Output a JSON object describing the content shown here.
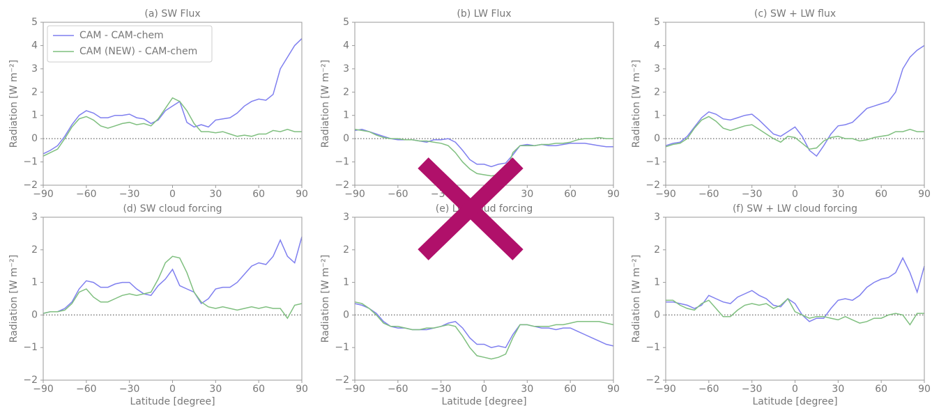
{
  "chart_data": [
    {
      "type": "line",
      "title": "(a) SW Flux",
      "ylabel": "Radiation [W m⁻²]",
      "legend": "upper left",
      "hline": 0,
      "x": [
        -90,
        -85,
        -80,
        -75,
        -70,
        -65,
        -60,
        -55,
        -50,
        -45,
        -40,
        -35,
        -30,
        -25,
        -20,
        -15,
        -10,
        -5,
        0,
        5,
        10,
        15,
        20,
        25,
        30,
        35,
        40,
        45,
        50,
        55,
        60,
        65,
        70,
        75,
        80,
        85,
        90
      ],
      "xlim": [
        -90,
        90
      ],
      "xticks": [
        {
          "value": -90,
          "label": "−90"
        },
        {
          "value": -60,
          "label": "−60"
        },
        {
          "value": -30,
          "label": "−30"
        },
        0,
        30,
        60,
        90
      ],
      "ylim": [
        -2,
        5
      ],
      "yticks": [
        {
          "value": -2,
          "label": "−2"
        },
        {
          "value": -1,
          "label": "−1"
        },
        0,
        1,
        2,
        3,
        4,
        5
      ],
      "series": [
        {
          "name": "CAM - CAM-chem",
          "color": "#7f7fef",
          "values": [
            -0.65,
            -0.5,
            -0.3,
            0.1,
            0.6,
            1.0,
            1.2,
            1.1,
            0.9,
            0.9,
            1.0,
            1.0,
            1.05,
            0.9,
            0.85,
            0.65,
            0.8,
            1.2,
            1.4,
            1.6,
            0.7,
            0.5,
            0.6,
            0.5,
            0.8,
            0.85,
            0.9,
            1.1,
            1.4,
            1.6,
            1.7,
            1.65,
            1.9,
            3.0,
            3.5,
            4.0,
            4.3
          ]
        },
        {
          "name": "CAM (NEW) - CAM-chem",
          "color": "#7fbf7f",
          "values": [
            -0.75,
            -0.6,
            -0.45,
            0,
            0.5,
            0.85,
            0.95,
            0.8,
            0.55,
            0.45,
            0.55,
            0.65,
            0.7,
            0.6,
            0.65,
            0.55,
            0.85,
            1.3,
            1.75,
            1.6,
            1.2,
            0.65,
            0.3,
            0.3,
            0.25,
            0.3,
            0.2,
            0.1,
            0.15,
            0.1,
            0.2,
            0.2,
            0.35,
            0.3,
            0.4,
            0.3,
            0.3
          ]
        }
      ]
    },
    {
      "type": "line",
      "title": "(b) LW Flux",
      "ylabel": "Radiation [W m⁻²]",
      "hline": 0,
      "x": [
        -90,
        -85,
        -80,
        -75,
        -70,
        -65,
        -60,
        -55,
        -50,
        -45,
        -40,
        -35,
        -30,
        -25,
        -20,
        -15,
        -10,
        -5,
        0,
        5,
        10,
        15,
        20,
        25,
        30,
        35,
        40,
        45,
        50,
        55,
        60,
        65,
        70,
        75,
        80,
        85,
        90
      ],
      "xlim": [
        -90,
        90
      ],
      "xticks": [
        {
          "value": -90,
          "label": "−90"
        },
        {
          "value": -60,
          "label": "−60"
        },
        {
          "value": -30,
          "label": "−30"
        },
        0,
        30,
        60,
        90
      ],
      "ylim": [
        -2,
        5
      ],
      "yticks": [
        {
          "value": -2,
          "label": "−2"
        },
        {
          "value": -1,
          "label": "−1"
        },
        0,
        1,
        2,
        3,
        4,
        5
      ],
      "series": [
        {
          "color": "#7f7fef",
          "values": [
            0.35,
            0.4,
            0.3,
            0.2,
            0.1,
            0,
            -0.05,
            -0.05,
            -0.05,
            -0.1,
            -0.15,
            -0.05,
            -0.05,
            0,
            -0.15,
            -0.5,
            -0.9,
            -1.1,
            -1.1,
            -1.2,
            -1.1,
            -1.05,
            -0.7,
            -0.3,
            -0.25,
            -0.3,
            -0.25,
            -0.3,
            -0.3,
            -0.25,
            -0.2,
            -0.2,
            -0.2,
            -0.25,
            -0.3,
            -0.35,
            -0.35
          ]
        },
        {
          "color": "#7fbf7f",
          "values": [
            0.4,
            0.35,
            0.3,
            0.15,
            0.05,
            0,
            0,
            -0.05,
            -0.05,
            -0.1,
            -0.1,
            -0.15,
            -0.2,
            -0.3,
            -0.6,
            -1.0,
            -1.3,
            -1.5,
            -1.55,
            -1.6,
            -1.55,
            -1.5,
            -0.6,
            -0.3,
            -0.3,
            -0.3,
            -0.25,
            -0.25,
            -0.2,
            -0.2,
            -0.15,
            -0.05,
            0,
            0,
            0.05,
            0,
            0
          ]
        }
      ]
    },
    {
      "type": "line",
      "title": "(c) SW + LW flux",
      "ylabel": "Radiation [W m⁻²]",
      "hline": 0,
      "x": [
        -90,
        -85,
        -80,
        -75,
        -70,
        -65,
        -60,
        -55,
        -50,
        -45,
        -40,
        -35,
        -30,
        -25,
        -20,
        -15,
        -10,
        -5,
        0,
        5,
        10,
        15,
        20,
        25,
        30,
        35,
        40,
        45,
        50,
        55,
        60,
        65,
        70,
        75,
        80,
        85,
        90
      ],
      "xlim": [
        -90,
        90
      ],
      "xticks": [
        {
          "value": -90,
          "label": "−90"
        },
        {
          "value": -60,
          "label": "−60"
        },
        {
          "value": -30,
          "label": "−30"
        },
        0,
        30,
        60,
        90
      ],
      "ylim": [
        -2,
        5
      ],
      "yticks": [
        {
          "value": -2,
          "label": "−2"
        },
        {
          "value": -1,
          "label": "−1"
        },
        0,
        1,
        2,
        3,
        4,
        5
      ],
      "series": [
        {
          "color": "#7f7fef",
          "values": [
            -0.3,
            -0.2,
            -0.15,
            0.1,
            0.5,
            0.9,
            1.15,
            1.05,
            0.85,
            0.8,
            0.9,
            1.0,
            1.05,
            0.8,
            0.5,
            0.2,
            0.1,
            0.3,
            0.5,
            0.1,
            -0.5,
            -0.75,
            -0.3,
            0.2,
            0.55,
            0.6,
            0.7,
            1.0,
            1.3,
            1.4,
            1.5,
            1.6,
            2.0,
            3.0,
            3.5,
            3.8,
            4.0
          ]
        },
        {
          "color": "#7fbf7f",
          "values": [
            -0.35,
            -0.25,
            -0.2,
            0,
            0.45,
            0.8,
            0.95,
            0.75,
            0.45,
            0.35,
            0.45,
            0.55,
            0.6,
            0.4,
            0.2,
            0,
            -0.15,
            0.1,
            0.05,
            -0.2,
            -0.45,
            -0.4,
            -0.1,
            0.05,
            0.1,
            0,
            0,
            -0.1,
            -0.05,
            0.05,
            0.1,
            0.15,
            0.3,
            0.3,
            0.4,
            0.3,
            0.3
          ]
        }
      ]
    },
    {
      "type": "line",
      "title": "(d) SW cloud forcing",
      "ylabel": "Radiation [W m⁻²]",
      "xlabel": "Latitude [degree]",
      "hline": 0,
      "x": [
        -90,
        -85,
        -80,
        -75,
        -70,
        -65,
        -60,
        -55,
        -50,
        -45,
        -40,
        -35,
        -30,
        -25,
        -20,
        -15,
        -10,
        -5,
        0,
        5,
        10,
        15,
        20,
        25,
        30,
        35,
        40,
        45,
        50,
        55,
        60,
        65,
        70,
        75,
        80,
        85,
        90
      ],
      "xlim": [
        -90,
        90
      ],
      "xticks": [
        {
          "value": -90,
          "label": "−90"
        },
        {
          "value": -60,
          "label": "−60"
        },
        {
          "value": -30,
          "label": "−30"
        },
        0,
        30,
        60,
        90
      ],
      "ylim": [
        -2,
        3
      ],
      "yticks": [
        {
          "value": -2,
          "label": "−2"
        },
        {
          "value": -1,
          "label": "−1"
        },
        0,
        1,
        2,
        3
      ],
      "series": [
        {
          "color": "#7f7fef",
          "values": [
            0.05,
            0.1,
            0.1,
            0.2,
            0.4,
            0.8,
            1.05,
            1.0,
            0.85,
            0.85,
            0.95,
            1.0,
            1.0,
            0.8,
            0.65,
            0.6,
            0.9,
            1.1,
            1.4,
            0.9,
            0.8,
            0.7,
            0.35,
            0.5,
            0.8,
            0.85,
            0.85,
            1.0,
            1.25,
            1.5,
            1.6,
            1.55,
            1.8,
            2.3,
            1.8,
            1.6,
            2.4
          ]
        },
        {
          "color": "#7fbf7f",
          "values": [
            0.05,
            0.1,
            0.1,
            0.15,
            0.35,
            0.7,
            0.8,
            0.55,
            0.4,
            0.4,
            0.5,
            0.6,
            0.65,
            0.6,
            0.65,
            0.7,
            1.1,
            1.6,
            1.8,
            1.75,
            1.3,
            0.7,
            0.4,
            0.25,
            0.2,
            0.25,
            0.2,
            0.15,
            0.2,
            0.25,
            0.2,
            0.25,
            0.2,
            0.2,
            -0.1,
            0.3,
            0.35
          ]
        }
      ]
    },
    {
      "type": "line",
      "title": "(e) LW cloud forcing",
      "ylabel": "Radiation [W m⁻²]",
      "xlabel": "Latitude [degree]",
      "hline": 0,
      "x": [
        -90,
        -85,
        -80,
        -75,
        -70,
        -65,
        -60,
        -55,
        -50,
        -45,
        -40,
        -35,
        -30,
        -25,
        -20,
        -15,
        -10,
        -5,
        0,
        5,
        10,
        15,
        20,
        25,
        30,
        35,
        40,
        45,
        50,
        55,
        60,
        65,
        70,
        75,
        80,
        85,
        90
      ],
      "xlim": [
        -90,
        90
      ],
      "xticks": [
        {
          "value": -90,
          "label": "−90"
        },
        {
          "value": -60,
          "label": "−60"
        },
        {
          "value": -30,
          "label": "−30"
        },
        0,
        30,
        60,
        90
      ],
      "ylim": [
        -2,
        3
      ],
      "yticks": [
        {
          "value": -2,
          "label": "−2"
        },
        {
          "value": -1,
          "label": "−1"
        },
        0,
        1,
        2,
        3
      ],
      "series": [
        {
          "color": "#7f7fef",
          "values": [
            0.35,
            0.3,
            0.2,
            0.05,
            -0.2,
            -0.35,
            -0.4,
            -0.4,
            -0.45,
            -0.45,
            -0.45,
            -0.4,
            -0.35,
            -0.25,
            -0.2,
            -0.4,
            -0.7,
            -0.9,
            -0.9,
            -1.0,
            -0.95,
            -1.0,
            -0.6,
            -0.3,
            -0.3,
            -0.35,
            -0.4,
            -0.4,
            -0.45,
            -0.4,
            -0.4,
            -0.5,
            -0.6,
            -0.7,
            -0.8,
            -0.9,
            -0.95
          ]
        },
        {
          "color": "#7fbf7f",
          "values": [
            0.4,
            0.35,
            0.2,
            0,
            -0.25,
            -0.35,
            -0.35,
            -0.4,
            -0.45,
            -0.45,
            -0.4,
            -0.4,
            -0.35,
            -0.3,
            -0.35,
            -0.65,
            -1.0,
            -1.25,
            -1.3,
            -1.35,
            -1.3,
            -1.2,
            -0.7,
            -0.3,
            -0.3,
            -0.35,
            -0.35,
            -0.35,
            -0.3,
            -0.3,
            -0.25,
            -0.2,
            -0.2,
            -0.2,
            -0.2,
            -0.25,
            -0.3
          ]
        }
      ]
    },
    {
      "type": "line",
      "title": "(f) SW + LW cloud forcing",
      "ylabel": "Radiation [W m⁻²]",
      "xlabel": "Latitude [degree]",
      "hline": 0,
      "x": [
        -90,
        -85,
        -80,
        -75,
        -70,
        -65,
        -60,
        -55,
        -50,
        -45,
        -40,
        -35,
        -30,
        -25,
        -20,
        -15,
        -10,
        -5,
        0,
        5,
        10,
        15,
        20,
        25,
        30,
        35,
        40,
        45,
        50,
        55,
        60,
        65,
        70,
        75,
        80,
        85,
        90
      ],
      "xlim": [
        -90,
        90
      ],
      "xticks": [
        {
          "value": -90,
          "label": "−90"
        },
        {
          "value": -60,
          "label": "−60"
        },
        {
          "value": -30,
          "label": "−30"
        },
        0,
        30,
        60,
        90
      ],
      "ylim": [
        -2,
        3
      ],
      "yticks": [
        {
          "value": -2,
          "label": "−2"
        },
        {
          "value": -1,
          "label": "−1"
        },
        0,
        1,
        2,
        3
      ],
      "series": [
        {
          "color": "#7f7fef",
          "values": [
            0.4,
            0.4,
            0.35,
            0.3,
            0.2,
            0.3,
            0.6,
            0.5,
            0.4,
            0.35,
            0.55,
            0.65,
            0.75,
            0.6,
            0.5,
            0.3,
            0.25,
            0.5,
            0.35,
            0,
            -0.2,
            -0.1,
            -0.1,
            0.2,
            0.45,
            0.5,
            0.45,
            0.6,
            0.85,
            1.0,
            1.1,
            1.15,
            1.3,
            1.75,
            1.3,
            0.7,
            1.5
          ]
        },
        {
          "color": "#7fbf7f",
          "values": [
            0.45,
            0.45,
            0.3,
            0.2,
            0.15,
            0.35,
            0.45,
            0.2,
            -0.05,
            -0.05,
            0.15,
            0.3,
            0.35,
            0.3,
            0.35,
            0.2,
            0.3,
            0.5,
            0.1,
            0,
            -0.1,
            -0.05,
            -0.05,
            -0.1,
            -0.15,
            -0.05,
            -0.15,
            -0.25,
            -0.2,
            -0.1,
            -0.1,
            0,
            0.05,
            0,
            -0.3,
            0.05,
            0.05
          ]
        }
      ]
    }
  ]
}
